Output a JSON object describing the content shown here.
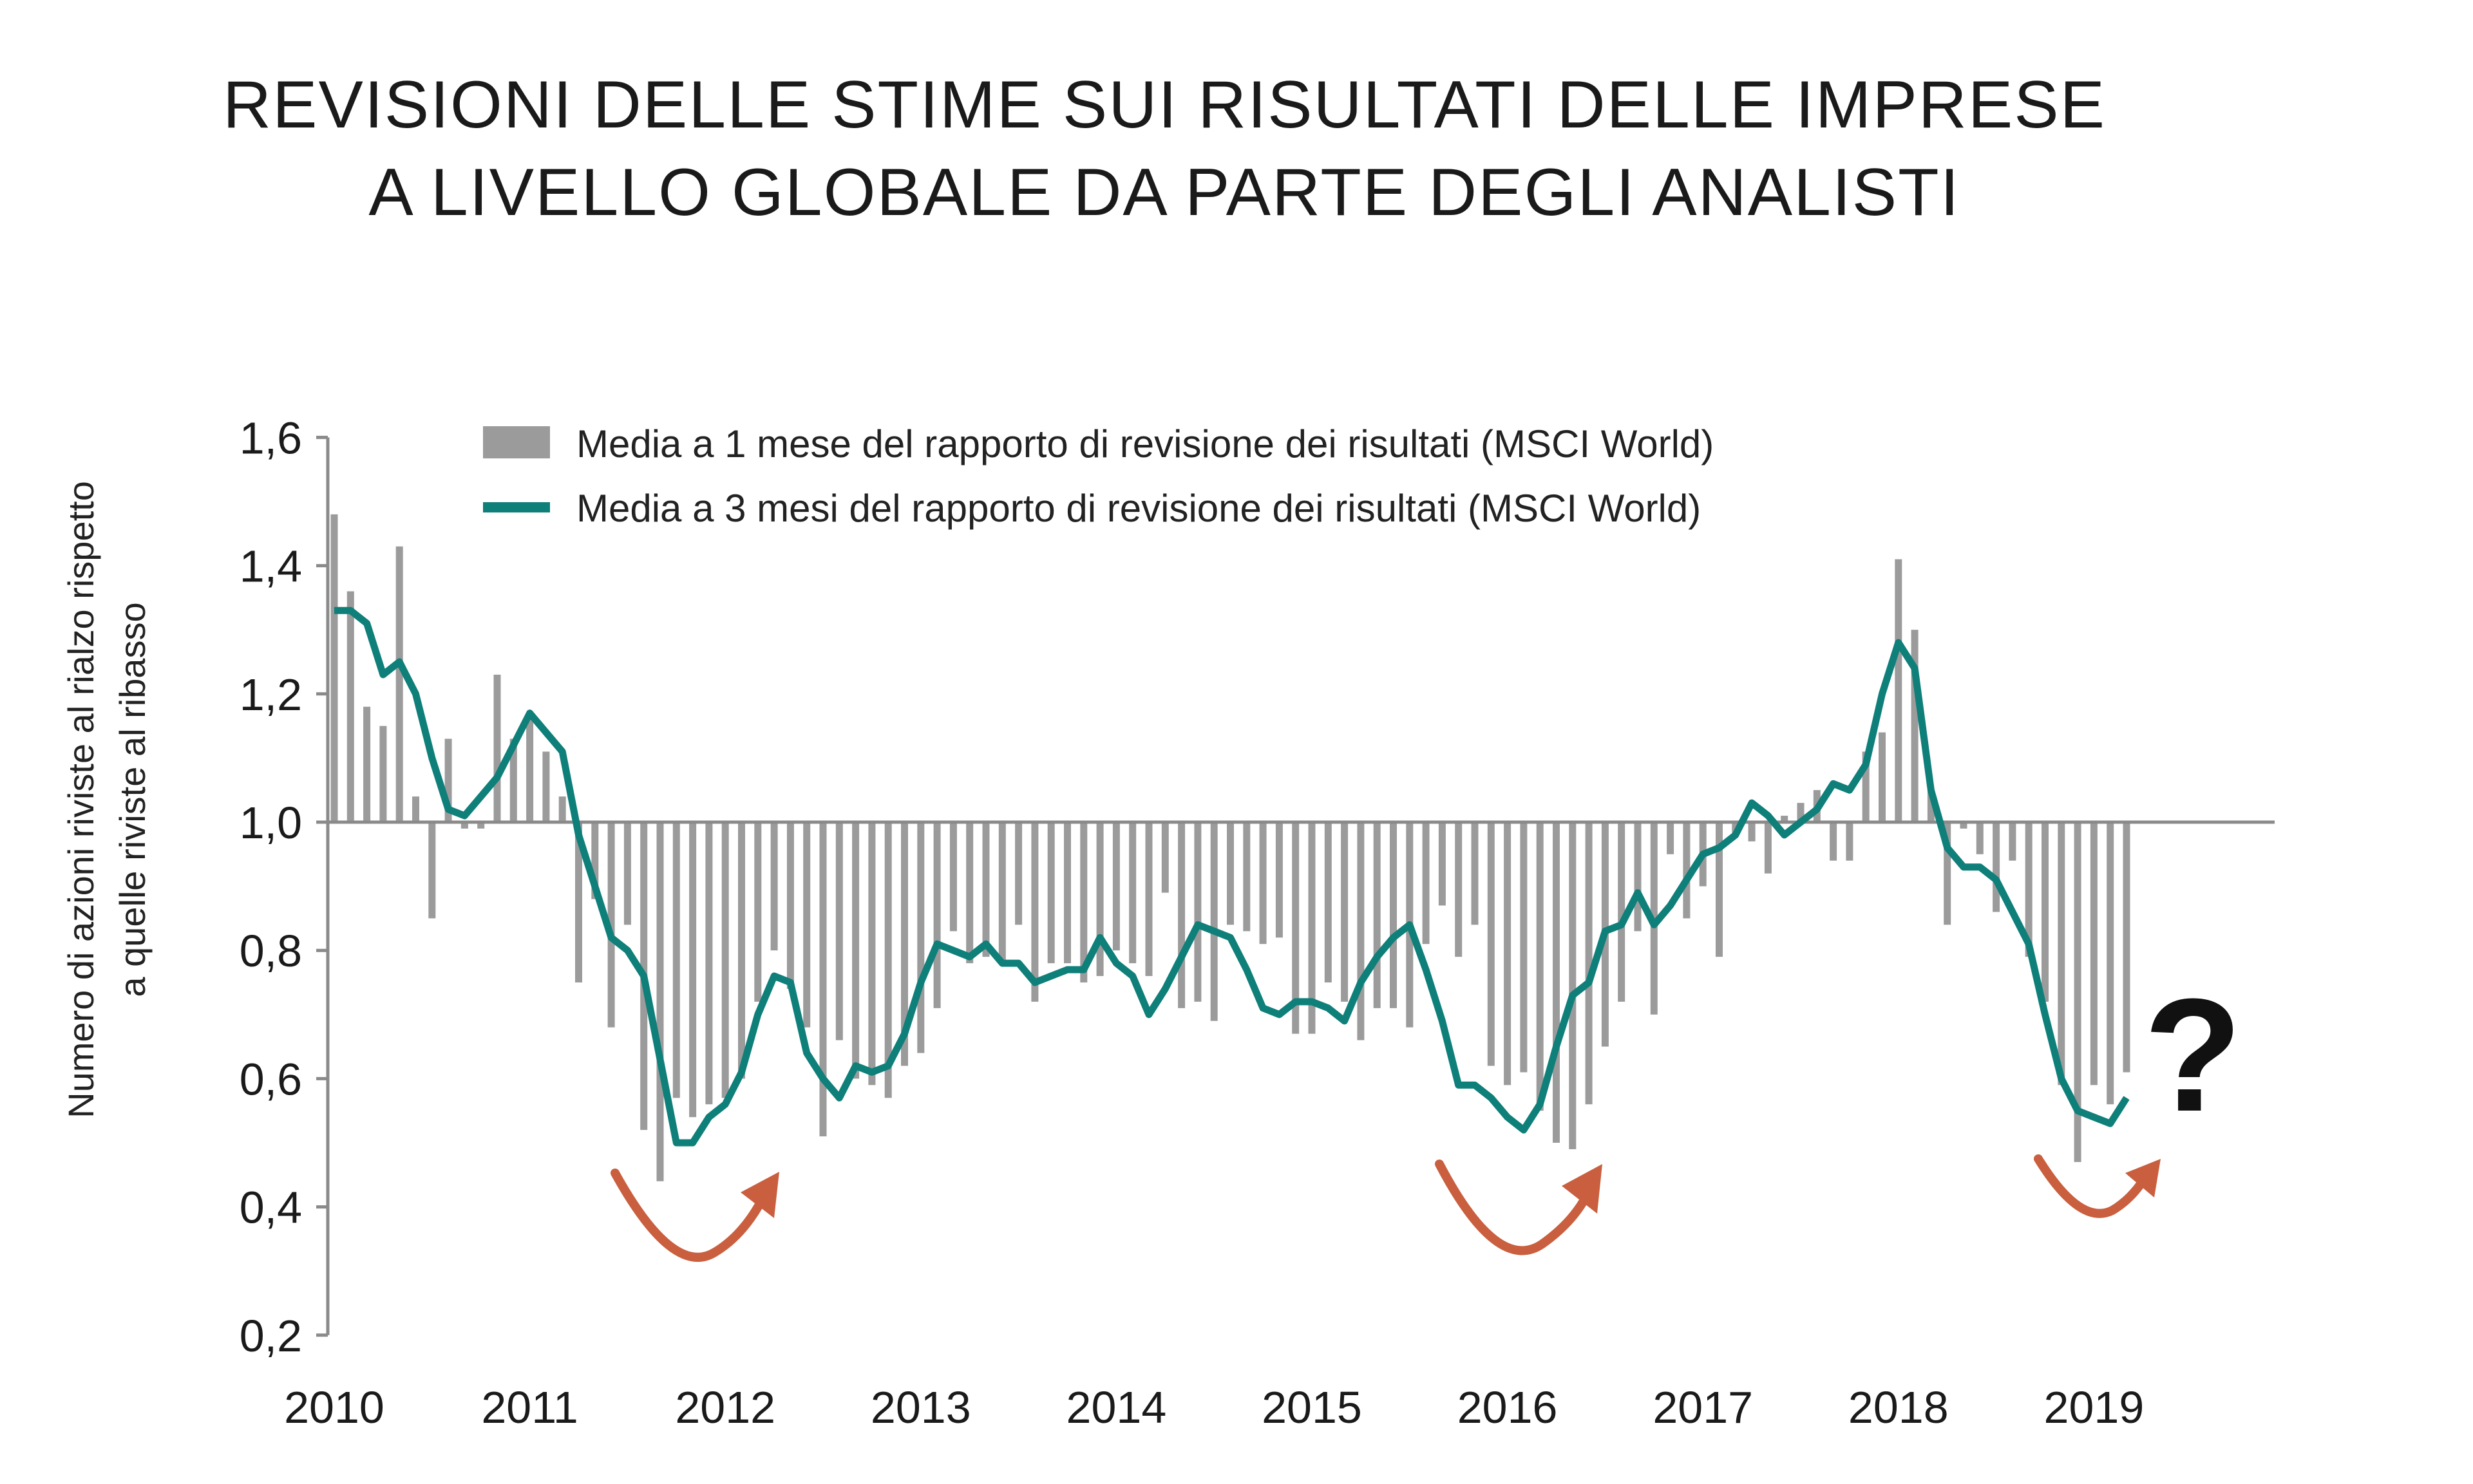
{
  "chart_data": {
    "type": "bar",
    "title": [
      "REVISIONI DELLE STIME SUI RISULTATI DELLE IMPRESE",
      "A LIVELLO GLOBALE DA PARTE DEGLI ANALISTI"
    ],
    "ylabel": [
      "Numero di azioni riviste al rialzo rispetto",
      "a quelle riviste al ribasso"
    ],
    "xlabel": "",
    "ylim": [
      0.2,
      1.6
    ],
    "baseline": 1.0,
    "yticks": [
      "1,6",
      "1,4",
      "1,2",
      "1,0",
      "0,8",
      "0,6",
      "0,4",
      "0,2"
    ],
    "ytick_values": [
      1.6,
      1.4,
      1.2,
      1.0,
      0.8,
      0.6,
      0.4,
      0.2
    ],
    "xticks": [
      "2010",
      "2011",
      "2012",
      "2013",
      "2014",
      "2015",
      "2016",
      "2017",
      "2018",
      "2019"
    ],
    "x_start": "2010-01",
    "frequency": "monthly",
    "legend_position": "top",
    "grid": false,
    "colors": {
      "bars": "#9b9b9b",
      "line": "#0f7f7a",
      "arrows": "#c95f3f",
      "axis": "#8a8a8a"
    },
    "series": [
      {
        "name": "Media a 1 mese del rapporto di revisione dei risultati (MSCI World)",
        "type": "bar",
        "values": [
          1.48,
          1.36,
          1.18,
          1.15,
          1.43,
          1.04,
          0.85,
          1.13,
          0.99,
          0.99,
          1.23,
          1.13,
          1.16,
          1.11,
          1.04,
          0.75,
          0.88,
          0.68,
          0.84,
          0.52,
          0.44,
          0.57,
          0.54,
          0.56,
          0.57,
          0.6,
          0.72,
          0.8,
          0.74,
          0.68,
          0.51,
          0.66,
          0.6,
          0.59,
          0.57,
          0.62,
          0.64,
          0.71,
          0.83,
          0.78,
          0.79,
          0.78,
          0.84,
          0.72,
          0.78,
          0.78,
          0.75,
          0.76,
          0.8,
          0.78,
          0.76,
          0.89,
          0.71,
          0.72,
          0.69,
          0.84,
          0.83,
          0.81,
          0.82,
          0.67,
          0.67,
          0.75,
          0.72,
          0.66,
          0.71,
          0.71,
          0.68,
          0.81,
          0.87,
          0.79,
          0.84,
          0.62,
          0.59,
          0.61,
          0.55,
          0.5,
          0.49,
          0.56,
          0.65,
          0.72,
          0.83,
          0.7,
          0.95,
          0.85,
          0.9,
          0.79,
          0.98,
          0.97,
          0.92,
          1.01,
          1.03,
          1.05,
          0.94,
          0.94,
          1.11,
          1.14,
          1.41,
          1.3,
          1.05,
          0.84,
          0.99,
          0.95,
          0.86,
          0.94,
          0.79,
          0.72,
          0.59,
          0.47,
          0.59,
          0.56,
          0.61
        ]
      },
      {
        "name": "Media a 3 mesi del rapporto di revisione dei risultati (MSCI World)",
        "type": "line",
        "values": [
          1.33,
          1.33,
          1.31,
          1.23,
          1.25,
          1.2,
          1.1,
          1.02,
          1.01,
          1.04,
          1.07,
          1.12,
          1.17,
          1.14,
          1.11,
          0.98,
          0.9,
          0.82,
          0.8,
          0.76,
          0.63,
          0.5,
          0.5,
          0.54,
          0.56,
          0.61,
          0.7,
          0.76,
          0.75,
          0.64,
          0.6,
          0.57,
          0.62,
          0.61,
          0.62,
          0.67,
          0.75,
          0.81,
          0.8,
          0.79,
          0.81,
          0.78,
          0.78,
          0.75,
          0.76,
          0.77,
          0.77,
          0.82,
          0.78,
          0.76,
          0.7,
          0.74,
          0.79,
          0.84,
          0.83,
          0.82,
          0.77,
          0.71,
          0.7,
          0.72,
          0.72,
          0.71,
          0.69,
          0.75,
          0.79,
          0.82,
          0.84,
          0.77,
          0.69,
          0.59,
          0.59,
          0.57,
          0.54,
          0.52,
          0.56,
          0.65,
          0.73,
          0.75,
          0.83,
          0.84,
          0.89,
          0.84,
          0.87,
          0.91,
          0.95,
          0.96,
          0.98,
          1.03,
          1.01,
          0.98,
          1.0,
          1.02,
          1.06,
          1.05,
          1.09,
          1.2,
          1.28,
          1.24,
          1.05,
          0.96,
          0.93,
          0.93,
          0.91,
          0.86,
          0.81,
          0.7,
          0.6,
          0.55,
          0.54,
          0.53,
          0.57
        ]
      }
    ],
    "annotations": {
      "question_mark": "?"
    }
  }
}
